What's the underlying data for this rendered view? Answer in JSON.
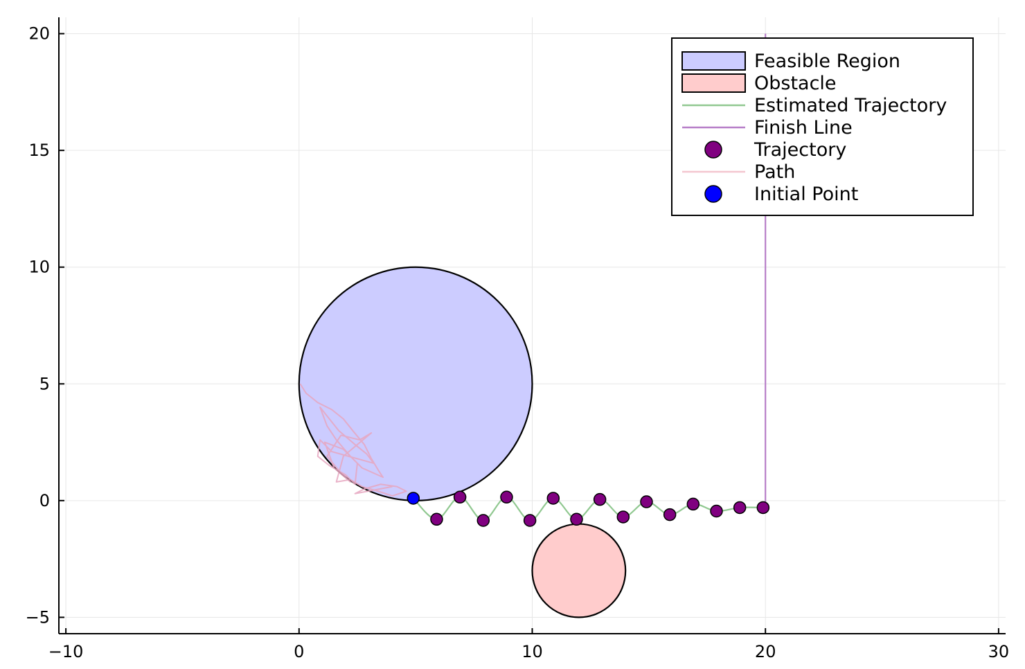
{
  "chart_data": {
    "type": "scatter",
    "title": "",
    "xlabel": "",
    "ylabel": "",
    "xlim": [
      -10.3,
      30.3
    ],
    "ylim": [
      -5.7,
      20.7
    ],
    "grid": true,
    "legend_position": "top-right",
    "x_ticks": [
      {
        "value": -10,
        "label": "−10"
      },
      {
        "value": 0,
        "label": "0"
      },
      {
        "value": 10,
        "label": "10"
      },
      {
        "value": 20,
        "label": "20"
      },
      {
        "value": 30,
        "label": "30"
      }
    ],
    "y_ticks": [
      {
        "value": -5,
        "label": "−5"
      },
      {
        "value": 0,
        "label": "0"
      },
      {
        "value": 5,
        "label": "5"
      },
      {
        "value": 10,
        "label": "10"
      },
      {
        "value": 15,
        "label": "15"
      },
      {
        "value": 20,
        "label": "20"
      }
    ],
    "series": [
      {
        "name": "Feasible Region",
        "kind": "circle",
        "center": [
          5,
          5
        ],
        "radius": 5,
        "fill": "#ccccff",
        "stroke": "#000000"
      },
      {
        "name": "Obstacle",
        "kind": "circle",
        "center": [
          12,
          -3
        ],
        "radius": 2,
        "fill": "#ffcccc",
        "stroke": "#000000"
      },
      {
        "name": "Estimated Trajectory",
        "kind": "line",
        "color": "#90c890",
        "x": [
          4.9,
          5.9,
          6.9,
          7.9,
          8.9,
          9.9,
          10.9,
          11.9,
          12.9,
          13.9,
          14.9,
          15.9,
          16.9,
          17.9,
          18.9,
          19.9
        ],
        "y": [
          0.1,
          -0.8,
          0.15,
          -0.85,
          0.15,
          -0.85,
          0.1,
          -0.8,
          0.05,
          -0.7,
          -0.05,
          -0.6,
          -0.15,
          -0.45,
          -0.3,
          -0.3
        ]
      },
      {
        "name": "Finish Line",
        "kind": "line",
        "color": "#b77ec8",
        "x": [
          20,
          20
        ],
        "y": [
          -0.3,
          20
        ]
      },
      {
        "name": "Trajectory",
        "kind": "points",
        "color": "#800080",
        "x": [
          5.9,
          6.9,
          7.9,
          8.9,
          9.9,
          10.9,
          11.9,
          12.9,
          13.9,
          14.9,
          15.9,
          16.9,
          17.9,
          18.9,
          19.9
        ],
        "y": [
          -0.8,
          0.15,
          -0.85,
          0.15,
          -0.85,
          0.1,
          -0.8,
          0.05,
          -0.7,
          -0.05,
          -0.6,
          -0.15,
          -0.45,
          -0.3,
          -0.3
        ]
      },
      {
        "name": "Path",
        "kind": "polyline",
        "color": "#e6a6bf",
        "x": [
          0.05,
          0.3,
          0.8,
          1.4,
          1.9,
          2.3,
          2.8,
          3.1,
          3.4,
          3.6,
          2.7,
          2.2,
          1.6,
          1.2,
          0.9,
          1.7,
          2.4,
          2.9,
          3.2,
          1.4,
          0.9,
          0.8,
          1.3,
          2.0,
          2.4,
          2.5,
          1.9,
          1.1,
          1.5,
          2.2,
          1.7,
          1.2,
          1.8,
          2.6,
          3.1,
          1.9,
          1.6,
          2.2,
          2.7,
          3.4,
          4.0,
          4.6,
          4.2,
          3.5,
          2.8,
          2.4,
          4.0
        ],
        "y": [
          5.0,
          4.6,
          4.2,
          3.9,
          3.5,
          3.0,
          2.4,
          1.8,
          1.3,
          1.0,
          1.4,
          1.9,
          2.6,
          3.2,
          4.0,
          3.0,
          2.4,
          2.0,
          1.6,
          2.1,
          2.6,
          1.9,
          1.5,
          1.1,
          0.7,
          1.6,
          2.2,
          2.5,
          1.4,
          0.8,
          1.3,
          1.9,
          2.8,
          2.6,
          2.9,
          1.9,
          0.8,
          0.9,
          0.6,
          0.4,
          0.2,
          0.4,
          0.6,
          0.7,
          0.5,
          0.3,
          0.6
        ]
      },
      {
        "name": "Initial Point",
        "kind": "points",
        "color": "#0000ff",
        "x": [
          4.9
        ],
        "y": [
          0.1
        ]
      }
    ]
  },
  "legend": {
    "items": [
      {
        "label": "Feasible Region",
        "symbol": "rect",
        "fill": "#ccccff",
        "stroke": "#000000"
      },
      {
        "label": "Obstacle",
        "symbol": "rect",
        "fill": "#ffcccc",
        "stroke": "#000000"
      },
      {
        "label": "Estimated Trajectory",
        "symbol": "line",
        "color": "#90c890"
      },
      {
        "label": "Finish Line",
        "symbol": "line",
        "color": "#b77ec8"
      },
      {
        "label": "Trajectory",
        "symbol": "marker",
        "fill": "#800080"
      },
      {
        "label": "Path",
        "symbol": "line",
        "color": "#f4c6cf"
      },
      {
        "label": "Initial Point",
        "symbol": "marker",
        "fill": "#0000ff"
      }
    ]
  }
}
